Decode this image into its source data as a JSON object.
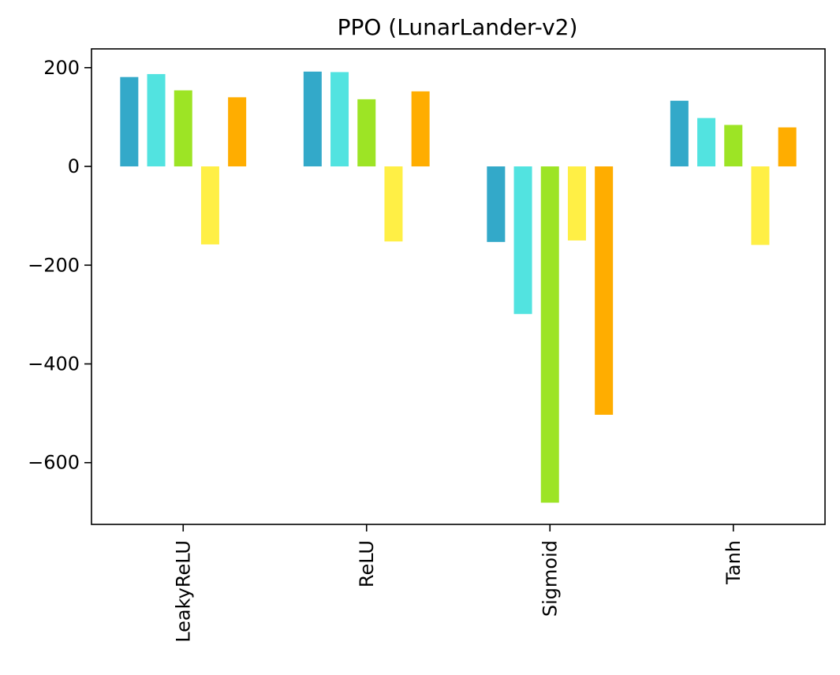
{
  "chart_data": {
    "type": "bar",
    "title": "PPO (LunarLander-v2)",
    "xlabel": "",
    "ylabel": "",
    "categories": [
      "LeakyReLU",
      "ReLU",
      "Sigmoid",
      "Tanh"
    ],
    "ylim": [
      -725,
      238
    ],
    "yticks": [
      200,
      0,
      -200,
      -400,
      -600
    ],
    "ytick_labels": [
      "200",
      "0",
      "−200",
      "−400",
      "−600"
    ],
    "grid": false,
    "legend": "none",
    "series": [
      {
        "color": "#33a9c9",
        "values": [
          181,
          192,
          -153,
          133
        ]
      },
      {
        "color": "#52e3e0",
        "values": [
          187,
          191,
          -299,
          98
        ]
      },
      {
        "color": "#9de425",
        "values": [
          154,
          136,
          -681,
          84
        ]
      },
      {
        "color": "#ffef45",
        "values": [
          -158,
          -152,
          -150,
          -159
        ]
      },
      {
        "color": "#ffad00",
        "values": [
          140,
          152,
          -503,
          79
        ]
      }
    ]
  }
}
